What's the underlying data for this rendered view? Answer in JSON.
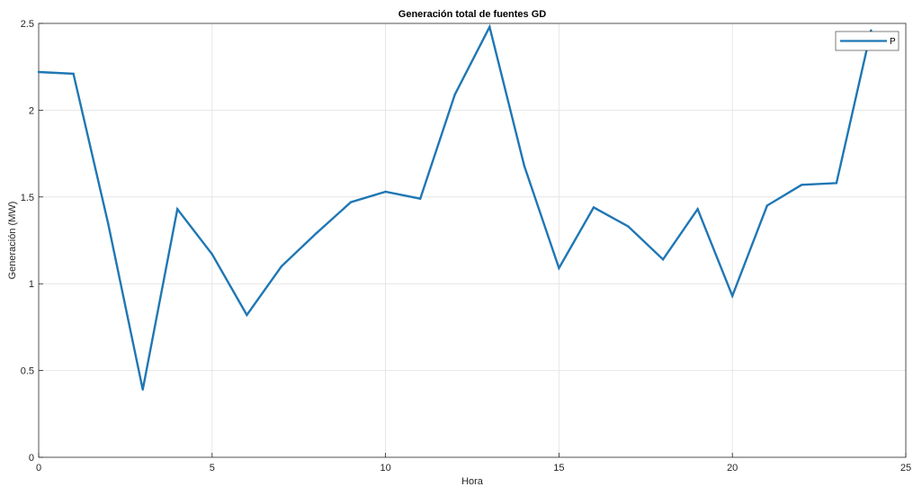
{
  "chart_data": {
    "type": "line",
    "title": "Generación total de fuentes GD",
    "xlabel": "Hora",
    "ylabel": "Generación (MW)",
    "xlim": [
      0,
      25
    ],
    "ylim": [
      0,
      2.5
    ],
    "xticks": [
      0,
      5,
      10,
      15,
      20,
      25
    ],
    "yticks": [
      0,
      0.5,
      1,
      1.5,
      2,
      2.5
    ],
    "grid": true,
    "legend_position": "top-right",
    "series": [
      {
        "name": "P",
        "color": "#1f77b4",
        "x": [
          0,
          1,
          2,
          3,
          4,
          5,
          6,
          7,
          8,
          9,
          10,
          11,
          12,
          13,
          14,
          15,
          16,
          17,
          18,
          19,
          20,
          21,
          22,
          23,
          24
        ],
        "y": [
          2.22,
          2.21,
          1.35,
          0.39,
          1.43,
          1.17,
          0.82,
          1.1,
          1.29,
          1.47,
          1.53,
          1.49,
          2.09,
          2.48,
          1.68,
          1.09,
          1.44,
          1.33,
          1.14,
          1.43,
          0.93,
          1.45,
          1.57,
          1.58,
          2.46
        ]
      }
    ]
  }
}
